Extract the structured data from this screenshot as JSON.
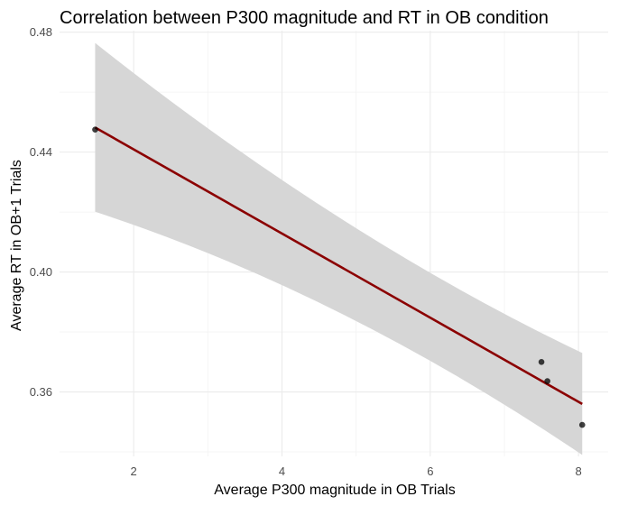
{
  "chart_data": {
    "type": "scatter",
    "title": "Correlation between P300 magnitude and RT in OB condition",
    "xlabel": "Average P300 magnitude in OB Trials",
    "ylabel": "Average RT in OB+1 Trials",
    "xlim": [
      1.0,
      8.4
    ],
    "ylim": [
      0.3385,
      0.4805
    ],
    "x_ticks": [
      2,
      4,
      6,
      8
    ],
    "x_tick_labels": [
      "2",
      "4",
      "6",
      "8"
    ],
    "y_ticks": [
      0.36,
      0.4,
      0.44,
      0.48
    ],
    "y_tick_labels": [
      "0.36",
      "0.40",
      "0.44",
      "0.48"
    ],
    "grid": true,
    "series": [
      {
        "points": [
          {
            "x": 1.48,
            "y": 0.4475
          },
          {
            "x": 7.5,
            "y": 0.37
          },
          {
            "x": 7.58,
            "y": 0.3636
          },
          {
            "x": 8.05,
            "y": 0.349
          }
        ]
      }
    ],
    "regression": {
      "x": [
        1.48,
        8.05
      ],
      "y": [
        0.4482,
        0.356
      ],
      "ci_upper": [
        0.4764,
        0.373
      ],
      "ci_lower": [
        0.4201,
        0.339
      ],
      "ci_mid_x": 4.8,
      "ci_mid_upper": 0.4095,
      "ci_mid_lower": 0.395
    },
    "colors": {
      "points": "#000000",
      "fit_line": "#8b0000",
      "ci_band": "#d6d6d6",
      "grid": "#ebebeb"
    }
  }
}
